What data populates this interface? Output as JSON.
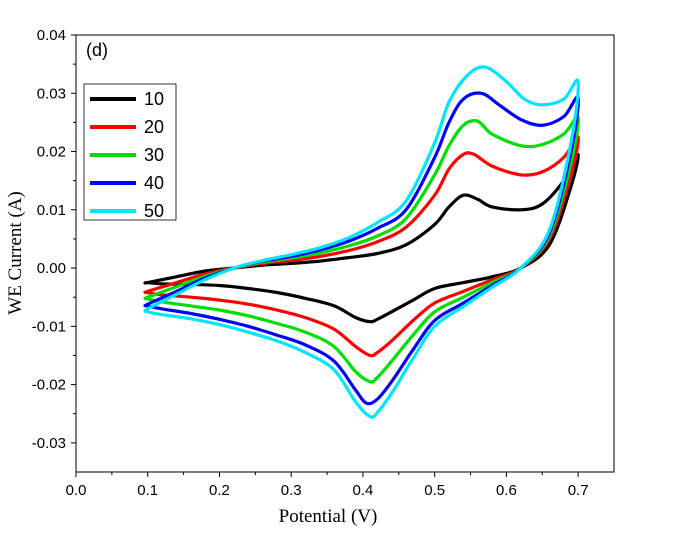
{
  "chart_data": {
    "type": "line",
    "panel_label": "(d)",
    "xlabel": "Potential (V)",
    "ylabel": "WE Current (A)",
    "xlim": [
      0.0,
      0.75
    ],
    "ylim": [
      -0.035,
      0.04
    ],
    "x_ticks": [
      0.0,
      0.1,
      0.2,
      0.3,
      0.4,
      0.5,
      0.6,
      0.7
    ],
    "x_tick_labels": [
      "0.0",
      "0.1",
      "0.2",
      "0.3",
      "0.4",
      "0.5",
      "0.6",
      "0.7"
    ],
    "y_ticks": [
      -0.03,
      -0.02,
      -0.01,
      0.0,
      0.01,
      0.02,
      0.03,
      0.04
    ],
    "y_tick_labels": [
      "-0.03",
      "-0.02",
      "-0.01",
      "0.00",
      "0.01",
      "0.02",
      "0.03",
      "0.04"
    ],
    "grid": false,
    "legend_position": "top-left",
    "series": [
      {
        "name": "10",
        "color": "#000000",
        "x": [
          0.1,
          0.14,
          0.18,
          0.22,
          0.26,
          0.3,
          0.34,
          0.38,
          0.42,
          0.46,
          0.5,
          0.52,
          0.54,
          0.56,
          0.58,
          0.62,
          0.65,
          0.68,
          0.7,
          0.69,
          0.66,
          0.62,
          0.58,
          0.54,
          0.5,
          0.47,
          0.44,
          0.42,
          0.41,
          0.39,
          0.36,
          0.32,
          0.28,
          0.24,
          0.2,
          0.16,
          0.12,
          0.1
        ],
        "y": [
          -0.0025,
          -0.0015,
          -0.0005,
          0.0,
          0.0005,
          0.0008,
          0.0012,
          0.0018,
          0.0025,
          0.004,
          0.0075,
          0.0105,
          0.0125,
          0.0118,
          0.0105,
          0.01,
          0.011,
          0.015,
          0.0195,
          0.014,
          0.004,
          0.0,
          -0.0015,
          -0.0025,
          -0.0035,
          -0.0055,
          -0.0075,
          -0.0088,
          -0.0092,
          -0.0085,
          -0.0065,
          -0.0052,
          -0.0042,
          -0.0035,
          -0.003,
          -0.0028,
          -0.0027,
          -0.0025
        ]
      },
      {
        "name": "20",
        "color": "#ff0000",
        "x": [
          0.1,
          0.14,
          0.18,
          0.22,
          0.26,
          0.3,
          0.34,
          0.38,
          0.42,
          0.46,
          0.5,
          0.52,
          0.54,
          0.555,
          0.58,
          0.62,
          0.65,
          0.68,
          0.7,
          0.69,
          0.66,
          0.62,
          0.58,
          0.54,
          0.5,
          0.47,
          0.44,
          0.42,
          0.41,
          0.39,
          0.36,
          0.32,
          0.28,
          0.24,
          0.2,
          0.16,
          0.12,
          0.1
        ],
        "y": [
          -0.004,
          -0.0025,
          -0.001,
          0.0,
          0.0008,
          0.0013,
          0.002,
          0.003,
          0.0045,
          0.007,
          0.0125,
          0.017,
          0.0195,
          0.0195,
          0.0175,
          0.016,
          0.0165,
          0.019,
          0.0225,
          0.016,
          0.005,
          0.0,
          -0.002,
          -0.004,
          -0.006,
          -0.009,
          -0.0125,
          -0.0145,
          -0.015,
          -0.0135,
          -0.0105,
          -0.0085,
          -0.0072,
          -0.0062,
          -0.0055,
          -0.005,
          -0.0046,
          -0.0042
        ]
      },
      {
        "name": "30",
        "color": "#00dd00",
        "x": [
          0.1,
          0.14,
          0.18,
          0.22,
          0.26,
          0.3,
          0.34,
          0.38,
          0.42,
          0.46,
          0.5,
          0.52,
          0.54,
          0.56,
          0.58,
          0.62,
          0.65,
          0.68,
          0.7,
          0.69,
          0.66,
          0.62,
          0.58,
          0.54,
          0.5,
          0.47,
          0.44,
          0.42,
          0.41,
          0.39,
          0.36,
          0.32,
          0.28,
          0.24,
          0.2,
          0.16,
          0.12,
          0.1
        ],
        "y": [
          -0.005,
          -0.0032,
          -0.0014,
          0.0,
          0.001,
          0.0017,
          0.0026,
          0.0038,
          0.0055,
          0.0085,
          0.016,
          0.021,
          0.0245,
          0.0252,
          0.023,
          0.021,
          0.0212,
          0.023,
          0.0258,
          0.018,
          0.0055,
          0.0,
          -0.0025,
          -0.005,
          -0.0075,
          -0.0115,
          -0.016,
          -0.0188,
          -0.0195,
          -0.0178,
          -0.0135,
          -0.011,
          -0.0095,
          -0.0082,
          -0.0072,
          -0.0065,
          -0.0058,
          -0.0053
        ]
      },
      {
        "name": "40",
        "color": "#0000ff",
        "x": [
          0.1,
          0.14,
          0.18,
          0.22,
          0.26,
          0.3,
          0.34,
          0.38,
          0.42,
          0.46,
          0.5,
          0.52,
          0.54,
          0.565,
          0.59,
          0.62,
          0.65,
          0.68,
          0.7,
          0.69,
          0.66,
          0.62,
          0.58,
          0.54,
          0.5,
          0.47,
          0.44,
          0.42,
          0.405,
          0.39,
          0.36,
          0.32,
          0.28,
          0.24,
          0.2,
          0.16,
          0.12,
          0.1
        ],
        "y": [
          -0.0062,
          -0.004,
          -0.0017,
          0.0,
          0.0012,
          0.002,
          0.0031,
          0.0046,
          0.0068,
          0.01,
          0.019,
          0.025,
          0.029,
          0.03,
          0.028,
          0.0255,
          0.0245,
          0.026,
          0.0292,
          0.02,
          0.006,
          0.0,
          -0.003,
          -0.006,
          -0.009,
          -0.014,
          -0.0195,
          -0.0225,
          -0.0232,
          -0.021,
          -0.016,
          -0.0132,
          -0.0115,
          -0.01,
          -0.0088,
          -0.0078,
          -0.007,
          -0.0065
        ]
      },
      {
        "name": "50",
        "color": "#00e5ff",
        "x": [
          0.1,
          0.14,
          0.18,
          0.22,
          0.26,
          0.3,
          0.34,
          0.38,
          0.42,
          0.46,
          0.5,
          0.52,
          0.545,
          0.57,
          0.6,
          0.625,
          0.65,
          0.68,
          0.7,
          0.69,
          0.66,
          0.62,
          0.58,
          0.54,
          0.5,
          0.47,
          0.44,
          0.42,
          0.41,
          0.39,
          0.36,
          0.32,
          0.28,
          0.24,
          0.2,
          0.16,
          0.12,
          0.1
        ],
        "y": [
          -0.007,
          -0.0045,
          -0.002,
          0.0,
          0.0013,
          0.0023,
          0.0035,
          0.0052,
          0.0078,
          0.0115,
          0.0215,
          0.0285,
          0.033,
          0.0345,
          0.032,
          0.029,
          0.028,
          0.029,
          0.032,
          0.0215,
          0.0065,
          0.0,
          -0.0033,
          -0.0066,
          -0.01,
          -0.0155,
          -0.0215,
          -0.0248,
          -0.0255,
          -0.023,
          -0.0175,
          -0.0145,
          -0.0125,
          -0.011,
          -0.0097,
          -0.0087,
          -0.008,
          -0.0075
        ]
      }
    ]
  }
}
